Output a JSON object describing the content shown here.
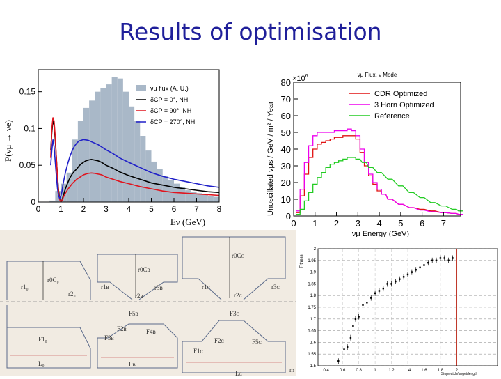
{
  "slide": {
    "title": "Results of optimisation"
  },
  "colors": {
    "title": "#1f1f9a",
    "hist": "#a9b8c8",
    "black": "#000000",
    "red": "#e0141e",
    "blue": "#2020c8",
    "magenta": "#ee00ee",
    "cdr": "#e11212",
    "green": "#22cc22",
    "vline": "#c0392b"
  },
  "chart_data": [
    {
      "id": "oscillation",
      "type": "line",
      "title": "",
      "xlabel": "Eν (GeV)",
      "ylabel": "P(νμ → νe)",
      "xlim": [
        0,
        8
      ],
      "ylim": [
        0,
        0.18
      ],
      "xticks": [
        "0",
        "1",
        "2",
        "3",
        "4",
        "5",
        "6",
        "7",
        "8"
      ],
      "yticks": [
        "0",
        "0.05",
        "0.1",
        "0.15"
      ],
      "legend": [
        "νμ flux (A. U.)",
        "δCP = 0°, NH",
        "δCP = 90°, NH",
        "δCP = 270°, NH"
      ],
      "hist": {
        "x0": 0.5,
        "width": 0.25,
        "values": [
          0.002,
          0.015,
          0.025,
          0.04,
          0.085,
          0.11,
          0.128,
          0.138,
          0.15,
          0.155,
          0.16,
          0.17,
          0.168,
          0.15,
          0.13,
          0.11,
          0.09,
          0.07,
          0.055,
          0.045,
          0.035,
          0.03,
          0.025,
          0.02,
          0.016,
          0.014,
          0.012,
          0.01,
          0.008,
          0.007
        ]
      },
      "series": [
        {
          "name": "δCP = 0°, NH",
          "x": [
            0.55,
            0.6,
            0.65,
            0.7,
            0.75,
            0.8,
            0.85,
            0.9,
            0.95,
            1.0,
            1.05,
            1.1,
            1.2,
            1.3,
            1.4,
            1.5,
            1.6,
            1.7,
            1.8,
            1.9,
            2.0,
            2.1,
            2.2,
            2.35,
            2.5,
            2.65,
            2.8,
            3.0,
            3.3,
            3.6,
            4.0,
            4.5,
            5.0,
            5.5,
            6.0,
            6.5,
            7.0,
            7.5,
            8.0
          ],
          "y": [
            0.07,
            0.095,
            0.11,
            0.105,
            0.085,
            0.06,
            0.035,
            0.015,
            0.004,
            0.0005,
            0.0025,
            0.008,
            0.018,
            0.026,
            0.033,
            0.038,
            0.042,
            0.045,
            0.049,
            0.052,
            0.054,
            0.056,
            0.057,
            0.058,
            0.057,
            0.056,
            0.054,
            0.05,
            0.046,
            0.041,
            0.036,
            0.031,
            0.026,
            0.023,
            0.02,
            0.018,
            0.016,
            0.014,
            0.013
          ]
        },
        {
          "name": "δCP = 90°, NH",
          "x": [
            0.55,
            0.6,
            0.65,
            0.7,
            0.75,
            0.8,
            0.85,
            0.9,
            0.95,
            1.0,
            1.05,
            1.1,
            1.2,
            1.3,
            1.4,
            1.5,
            1.6,
            1.7,
            1.8,
            1.9,
            2.0,
            2.1,
            2.2,
            2.35,
            2.5,
            2.65,
            2.8,
            3.0,
            3.3,
            3.6,
            4.0,
            4.5,
            5.0,
            5.5,
            6.0,
            6.5,
            7.0,
            7.5,
            8.0
          ],
          "y": [
            0.06,
            0.1,
            0.115,
            0.11,
            0.09,
            0.06,
            0.033,
            0.012,
            0.003,
            0.0003,
            0.002,
            0.006,
            0.012,
            0.017,
            0.021,
            0.025,
            0.028,
            0.031,
            0.033,
            0.035,
            0.037,
            0.038,
            0.039,
            0.0395,
            0.039,
            0.038,
            0.037,
            0.034,
            0.031,
            0.028,
            0.025,
            0.021,
            0.018,
            0.015,
            0.013,
            0.012,
            0.011,
            0.01,
            0.009
          ]
        },
        {
          "name": "δCP = 270°, NH",
          "x": [
            0.55,
            0.6,
            0.65,
            0.7,
            0.75,
            0.8,
            0.85,
            0.9,
            0.95,
            1.0,
            1.05,
            1.1,
            1.2,
            1.3,
            1.4,
            1.5,
            1.6,
            1.7,
            1.8,
            1.9,
            2.0,
            2.1,
            2.2,
            2.35,
            2.5,
            2.65,
            2.8,
            3.0,
            3.3,
            3.6,
            4.0,
            4.5,
            5.0,
            5.5,
            6.0,
            6.5,
            7.0,
            7.5,
            8.0
          ],
          "y": [
            0.05,
            0.07,
            0.085,
            0.075,
            0.055,
            0.035,
            0.018,
            0.008,
            0.005,
            0.008,
            0.015,
            0.025,
            0.04,
            0.052,
            0.062,
            0.07,
            0.076,
            0.08,
            0.083,
            0.084,
            0.085,
            0.0845,
            0.084,
            0.082,
            0.08,
            0.078,
            0.075,
            0.071,
            0.066,
            0.06,
            0.054,
            0.047,
            0.04,
            0.035,
            0.031,
            0.028,
            0.025,
            0.022,
            0.02
          ]
        }
      ]
    },
    {
      "id": "flux",
      "type": "line",
      "title": "νμ Flux, ν Mode",
      "xlabel": "νμ Energy (GeV)",
      "ylabel": "Unoscillated νμs / GeV / m² / Year",
      "exponent": "×10",
      "exponent_power": "6",
      "xlim": [
        0,
        7.8
      ],
      "ylim": [
        0,
        80
      ],
      "xticks": [
        "0",
        "1",
        "2",
        "3",
        "4",
        "5",
        "6",
        "7"
      ],
      "yticks": [
        "0",
        "10",
        "20",
        "30",
        "40",
        "50",
        "60",
        "70",
        "80"
      ],
      "legend": [
        "CDR Optimized",
        "3 Horn Optimized",
        "Reference"
      ],
      "series": [
        {
          "name": "CDR Optimized",
          "x": [
            0.2,
            0.4,
            0.6,
            0.8,
            1.0,
            1.2,
            1.4,
            1.6,
            1.8,
            2.0,
            2.2,
            2.4,
            2.6,
            2.8,
            3.0,
            3.2,
            3.4,
            3.6,
            3.8,
            4.0,
            4.2,
            4.5,
            5.0,
            5.5,
            6.0,
            6.5,
            7.0,
            7.5,
            7.8
          ],
          "y": [
            2,
            12,
            25,
            35,
            40,
            43,
            44,
            45,
            46,
            47,
            47,
            48,
            48,
            48,
            46,
            38,
            30,
            24,
            19,
            15,
            13,
            10,
            7,
            5,
            4,
            3,
            2,
            1.5,
            1
          ]
        },
        {
          "name": "3 Horn Optimized",
          "x": [
            0.2,
            0.4,
            0.6,
            0.8,
            1.0,
            1.2,
            1.4,
            1.6,
            1.8,
            2.0,
            2.2,
            2.4,
            2.6,
            2.8,
            3.0,
            3.2,
            3.4,
            3.6,
            3.8,
            4.0,
            4.2,
            4.5,
            5.0,
            5.5,
            6.0,
            6.5,
            7.0,
            7.5,
            7.8
          ],
          "y": [
            3,
            16,
            32,
            42,
            48,
            50,
            50,
            50,
            50,
            51,
            51,
            51,
            52,
            51,
            48,
            40,
            32,
            25,
            20,
            16,
            13,
            10,
            7,
            5,
            3.5,
            2.5,
            2,
            1.5,
            1
          ]
        },
        {
          "name": "Reference",
          "x": [
            0.2,
            0.4,
            0.6,
            0.8,
            1.0,
            1.2,
            1.4,
            1.6,
            1.8,
            2.0,
            2.2,
            2.4,
            2.6,
            2.8,
            3.0,
            3.3,
            3.6,
            4.0,
            4.5,
            5.0,
            5.5,
            6.0,
            6.5,
            7.0,
            7.5,
            7.8
          ],
          "y": [
            1,
            4,
            9,
            14,
            19,
            23,
            26,
            29,
            31,
            32,
            33,
            34,
            35,
            35,
            34,
            32,
            29,
            26,
            22,
            18,
            14,
            11,
            8,
            6,
            4,
            3
          ]
        }
      ]
    },
    {
      "id": "fitness",
      "type": "scatter",
      "ylabel": "Fitness",
      "xlabel": "Stopwatch/target/length",
      "xlim": [
        0.3,
        2.5
      ],
      "ylim": [
        1.5,
        2.0
      ],
      "xticks": [
        "0.4",
        "0.6",
        "0.8",
        "1",
        "1.2",
        "1.4",
        "1.6",
        "1.8",
        "2"
      ],
      "yticks": [
        "1.5",
        "1.55",
        "1.6",
        "1.65",
        "1.7",
        "1.75",
        "1.8",
        "1.85",
        "1.9",
        "1.95",
        "2"
      ],
      "vline": 2.0,
      "x": [
        0.55,
        0.62,
        0.66,
        0.7,
        0.73,
        0.76,
        0.8,
        0.85,
        0.9,
        0.95,
        1.0,
        1.05,
        1.1,
        1.15,
        1.2,
        1.25,
        1.3,
        1.35,
        1.4,
        1.45,
        1.5,
        1.55,
        1.6,
        1.65,
        1.7,
        1.75,
        1.8,
        1.85,
        1.9,
        1.95
      ],
      "y": [
        1.52,
        1.57,
        1.58,
        1.62,
        1.67,
        1.7,
        1.71,
        1.76,
        1.77,
        1.79,
        1.81,
        1.82,
        1.83,
        1.85,
        1.85,
        1.86,
        1.87,
        1.88,
        1.89,
        1.9,
        1.91,
        1.92,
        1.93,
        1.94,
        1.95,
        1.95,
        1.96,
        1.96,
        1.95,
        1.96
      ]
    }
  ],
  "diagram": {
    "a": {
      "top": "r0C₀",
      "left": "r1₀",
      "right": "r2₀",
      "bottom": "F1₀",
      "length": "L₀"
    },
    "b": {
      "top": "r0Cʙ",
      "left": "r1ʙ",
      "mid": "r2ʙ",
      "right": "r3ʙ",
      "up": "F5ʙ",
      "inner": "F2ʙ",
      "base": "F3ʙ",
      "far": "F4ʙ",
      "length": "Lʙ"
    },
    "c": {
      "top": "r0Cᴄ",
      "left": "r1ᴄ",
      "mid": "r2ᴄ",
      "right": "r3ᴄ",
      "up": "F3ᴄ",
      "inner": "F2ᴄ",
      "far": "F5ᴄ",
      "base": "F1ᴄ",
      "length": "Lᴄ"
    },
    "corner": "m"
  }
}
